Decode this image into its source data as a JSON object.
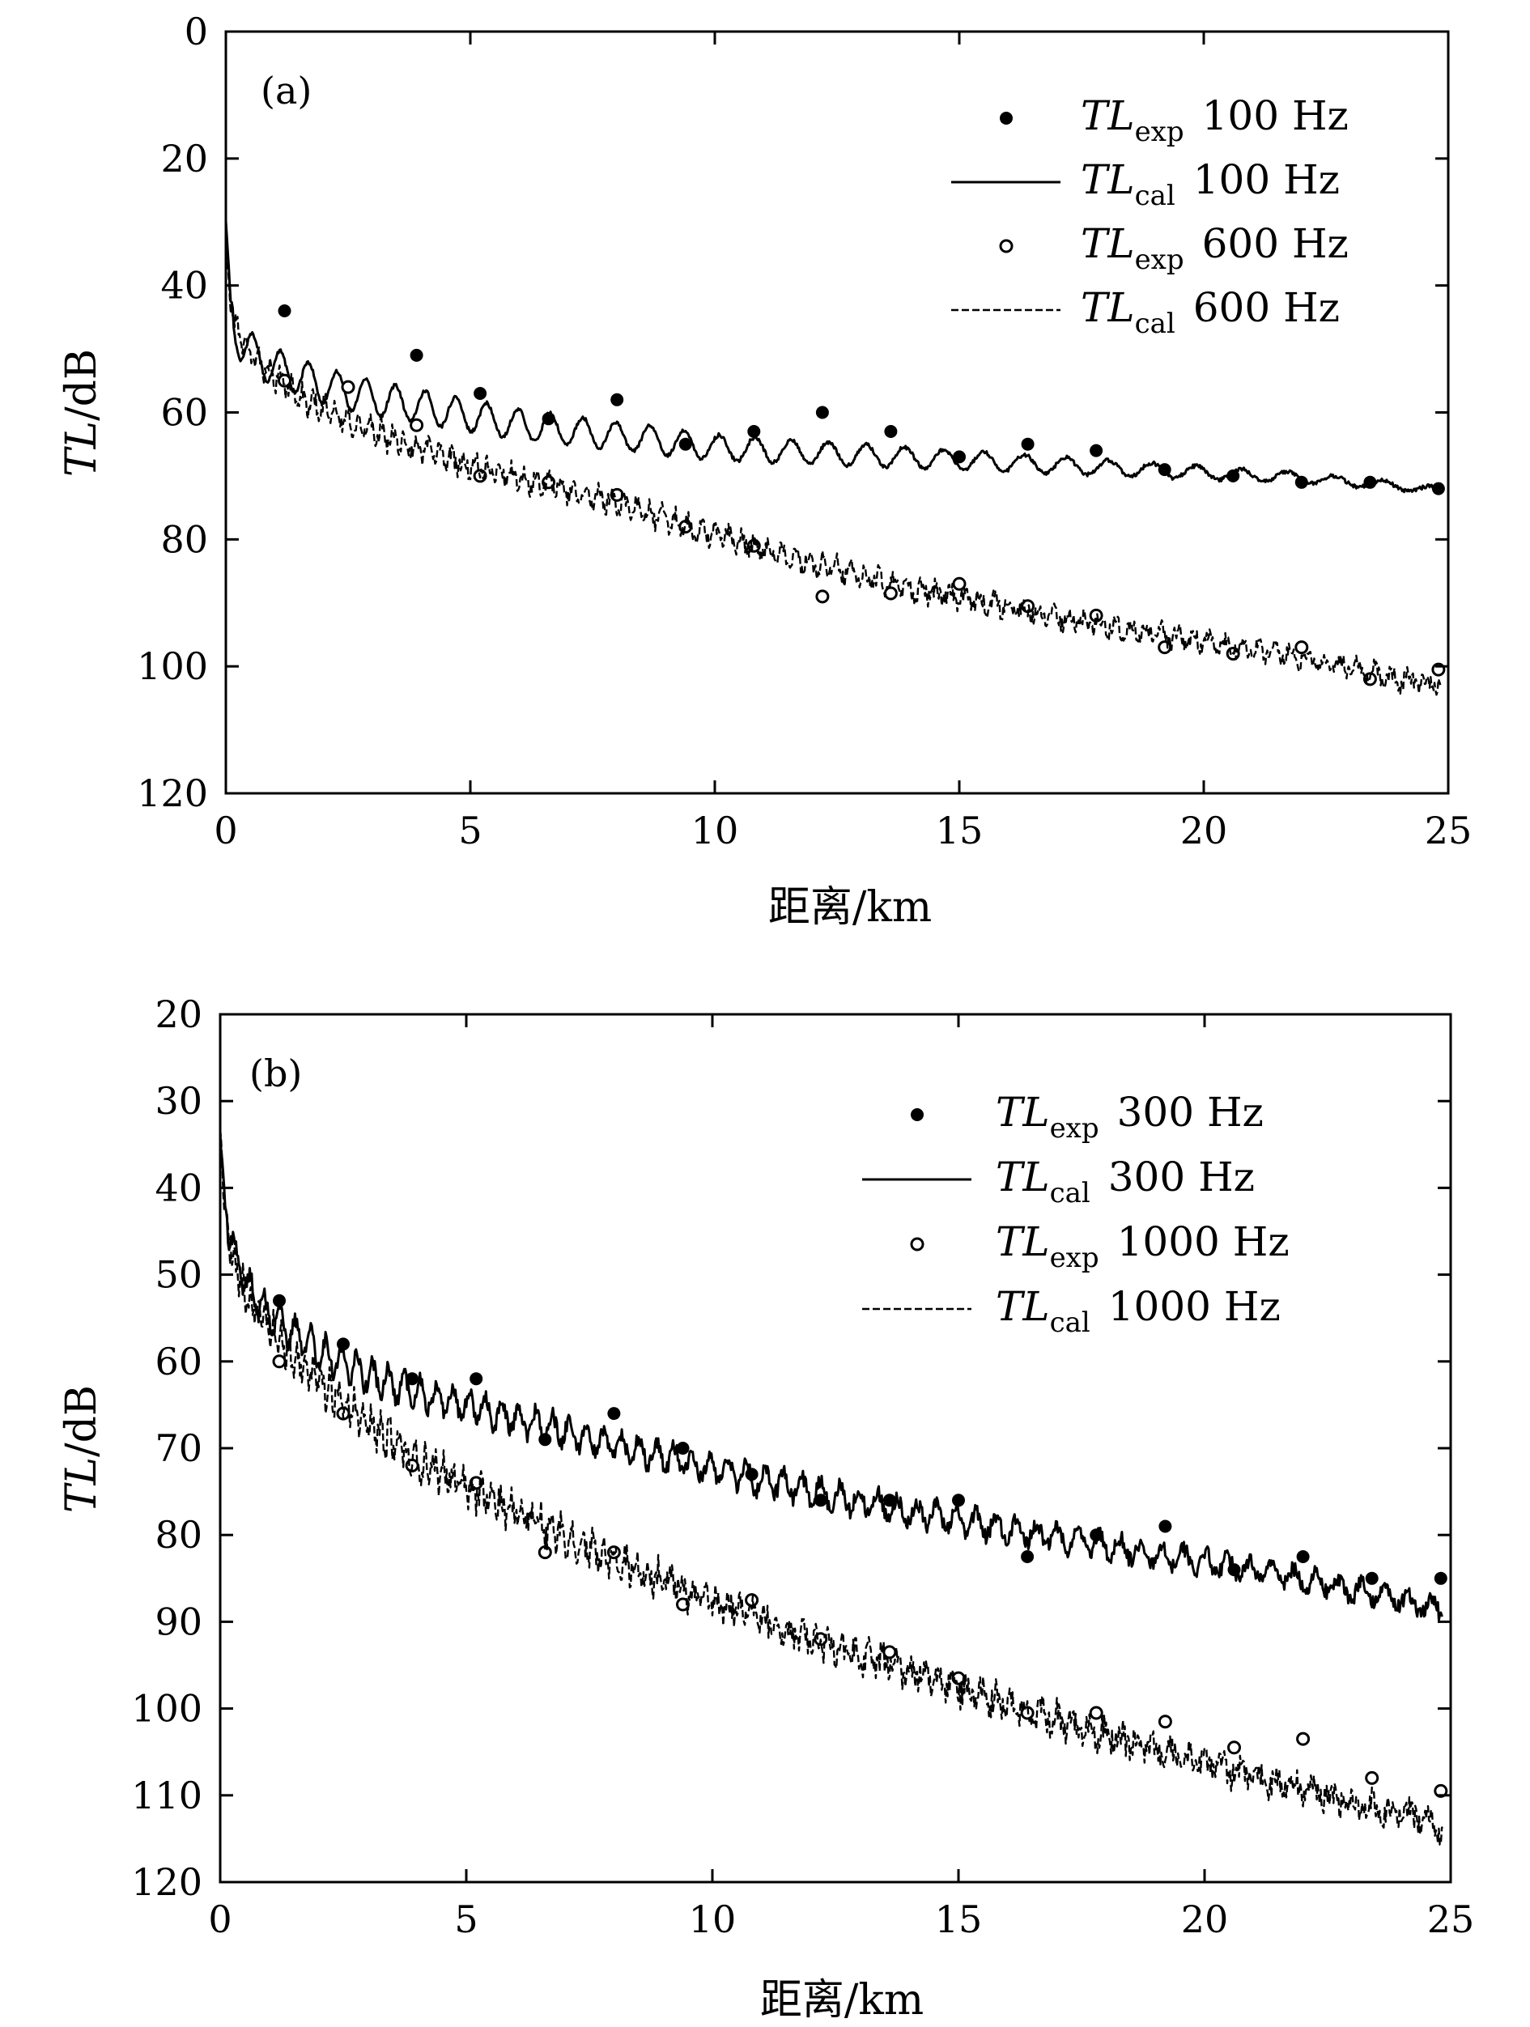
{
  "chart_data": [
    {
      "type": "line",
      "panel_label": "(a)",
      "xlabel": "距离/km",
      "ylabel_var": "TL",
      "ylabel_unit": "/dB",
      "xlim": [
        0,
        25
      ],
      "ylim": [
        0,
        120
      ],
      "y_inverted": true,
      "xticks": [
        "0",
        "5",
        "10",
        "15",
        "20",
        "25"
      ],
      "yticks": [
        "0",
        "20",
        "40",
        "60",
        "80",
        "100",
        "120"
      ],
      "xtick_values": [
        0,
        5,
        10,
        15,
        20,
        25
      ],
      "ytick_values": [
        0,
        20,
        40,
        60,
        80,
        100,
        120
      ],
      "legend_position": "top-right",
      "series": [
        {
          "name": "TLexp 100 Hz",
          "var": "TL",
          "sub": "exp",
          "freq": "100 Hz",
          "style": "filled-marker",
          "x": [
            1.2,
            2.5,
            3.9,
            5.2,
            6.6,
            8.0,
            9.4,
            10.8,
            12.2,
            13.6,
            15.0,
            16.4,
            17.8,
            19.2,
            20.6,
            22.0,
            23.4,
            24.8
          ],
          "y": [
            44,
            56,
            51,
            57,
            61,
            58,
            65,
            63,
            60,
            63,
            67,
            65,
            66,
            69,
            70,
            71,
            71,
            72
          ]
        },
        {
          "name": "TLcal 100 Hz",
          "var": "TL",
          "sub": "cal",
          "freq": "100 Hz",
          "style": "solid",
          "x": [
            0,
            0.1,
            0.3,
            0.6,
            1,
            1.5,
            2,
            3,
            4,
            5,
            6,
            7,
            8,
            9,
            10,
            12,
            14,
            16,
            18,
            20,
            22,
            24,
            25
          ],
          "y": [
            30,
            42,
            46,
            48,
            50,
            51.5,
            53,
            55,
            56.5,
            58,
            59.5,
            60.5,
            61.5,
            62.5,
            63.5,
            64.5,
            65.5,
            66.5,
            67.5,
            68.5,
            69.5,
            71,
            72
          ],
          "osc": {
            "amp0": 6,
            "amp1": 1.0,
            "period0": 0.55,
            "period1": 0.75,
            "noise": 0.3,
            "seed": 11
          }
        },
        {
          "name": "TLexp 600 Hz",
          "var": "TL",
          "sub": "exp",
          "freq": "600 Hz",
          "style": "open-marker",
          "x": [
            1.2,
            2.5,
            3.9,
            5.2,
            6.6,
            8.0,
            9.4,
            10.8,
            12.2,
            13.6,
            15.0,
            16.4,
            17.8,
            19.2,
            20.6,
            22.0,
            23.4,
            24.8
          ],
          "y": [
            55,
            56,
            62,
            70,
            71,
            73,
            78,
            81,
            89,
            88.5,
            87,
            90.5,
            92,
            97,
            98,
            97,
            102,
            100.5
          ]
        },
        {
          "name": "TLcal 600 Hz",
          "var": "TL",
          "sub": "cal",
          "freq": "600 Hz",
          "style": "dashed",
          "x": [
            0,
            0.1,
            0.3,
            0.6,
            1,
            1.5,
            2,
            3,
            4,
            5,
            6,
            7,
            8,
            9,
            10,
            12,
            14,
            16,
            18,
            20,
            22,
            24,
            25
          ],
          "y": [
            32,
            43,
            47,
            50,
            53,
            56,
            58,
            61.5,
            64.5,
            67,
            69,
            71,
            73,
            75.5,
            78,
            82.5,
            86.5,
            89.5,
            92.5,
            95,
            97.5,
            101,
            102
          ],
          "osc": {
            "amp0": 3,
            "amp1": 2.0,
            "period0": 0.22,
            "period1": 0.28,
            "noise": 1.3,
            "seed": 23
          }
        }
      ]
    },
    {
      "type": "line",
      "panel_label": "(b)",
      "xlabel": "距离/km",
      "ylabel_var": "TL",
      "ylabel_unit": "/dB",
      "xlim": [
        0,
        25
      ],
      "ylim": [
        20,
        120
      ],
      "y_inverted": true,
      "xticks": [
        "0",
        "5",
        "10",
        "15",
        "20",
        "25"
      ],
      "yticks": [
        "20",
        "30",
        "40",
        "50",
        "60",
        "70",
        "80",
        "90",
        "100",
        "110",
        "120"
      ],
      "xtick_values": [
        0,
        5,
        10,
        15,
        20,
        25
      ],
      "ytick_values": [
        20,
        30,
        40,
        50,
        60,
        70,
        80,
        90,
        100,
        110,
        120
      ],
      "legend_position": "top-right",
      "series": [
        {
          "name": "TLexp 300 Hz",
          "var": "TL",
          "sub": "exp",
          "freq": "300 Hz",
          "style": "filled-marker",
          "x": [
            1.2,
            2.5,
            3.9,
            5.2,
            6.6,
            8.0,
            9.4,
            10.8,
            12.2,
            13.6,
            15.0,
            16.4,
            17.8,
            19.2,
            20.6,
            22.0,
            23.4,
            24.8
          ],
          "y": [
            53,
            58,
            62,
            62,
            69,
            66,
            70,
            73,
            76,
            76,
            76,
            82.5,
            80,
            79,
            84,
            82.5,
            85,
            85
          ]
        },
        {
          "name": "TLcal 300 Hz",
          "var": "TL",
          "sub": "cal",
          "freq": "300 Hz",
          "style": "solid",
          "x": [
            0,
            0.1,
            0.3,
            0.6,
            1,
            1.5,
            2,
            3,
            4,
            5,
            6,
            7,
            8,
            9,
            10,
            12,
            14,
            16,
            18,
            20,
            22,
            24,
            25
          ],
          "y": [
            34,
            42,
            46,
            50,
            53,
            55,
            57,
            60,
            62,
            63.5,
            65,
            66.5,
            68,
            69.5,
            71,
            73.5,
            76,
            78,
            80,
            82,
            84,
            86.5,
            88
          ],
          "osc": {
            "amp0": 3.5,
            "amp1": 2.0,
            "period0": 0.3,
            "period1": 0.38,
            "noise": 0.9,
            "seed": 37
          }
        },
        {
          "name": "TLexp 1000 Hz",
          "var": "TL",
          "sub": "exp",
          "freq": "1000 Hz",
          "style": "open-marker",
          "x": [
            1.2,
            2.5,
            3.9,
            5.2,
            6.6,
            8.0,
            9.4,
            10.8,
            12.2,
            13.6,
            15.0,
            16.4,
            17.8,
            19.2,
            20.6,
            22.0,
            23.4,
            24.8
          ],
          "y": [
            60,
            66,
            72,
            74,
            82,
            82,
            88,
            87.5,
            92,
            93.5,
            96.5,
            100.5,
            100.5,
            101.5,
            104.5,
            103.5,
            108,
            109.5
          ]
        },
        {
          "name": "TLcal 1000 Hz",
          "var": "TL",
          "sub": "cal",
          "freq": "1000 Hz",
          "style": "dashed",
          "x": [
            0,
            0.1,
            0.3,
            0.6,
            1,
            1.5,
            2,
            3,
            4,
            5,
            6,
            7,
            8,
            9,
            10,
            12,
            14,
            16,
            18,
            20,
            22,
            24,
            25
          ],
          "y": [
            34,
            43,
            48,
            52,
            55,
            58,
            61,
            65.5,
            70,
            73,
            76,
            79,
            81.5,
            84,
            86.5,
            91,
            94.5,
            98.5,
            102,
            105.5,
            108.5,
            111.5,
            113
          ],
          "osc": {
            "amp0": 3.0,
            "amp1": 1.5,
            "period0": 0.15,
            "period1": 0.25,
            "noise": 1.6,
            "seed": 53
          }
        }
      ]
    }
  ]
}
